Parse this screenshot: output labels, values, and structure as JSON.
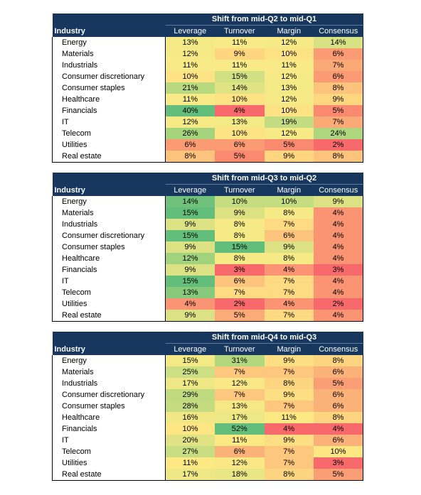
{
  "tables": [
    {
      "title": "Shift from mid-Q2 to mid-Q1",
      "columns": [
        "Industry",
        "Leverage",
        "Turnover",
        "Margin",
        "Consensus"
      ],
      "rows": [
        {
          "industry": "Energy",
          "values": [
            "13%",
            "11%",
            "12%",
            "14%"
          ],
          "colors": [
            "#f3e985",
            "#f7ea87",
            "#f6ea87",
            "#d9e283"
          ]
        },
        {
          "industry": "Materials",
          "values": [
            "12%",
            "9%",
            "10%",
            "6%"
          ],
          "colors": [
            "#f6ea87",
            "#fed680",
            "#fde383",
            "#fa9b73"
          ]
        },
        {
          "industry": "Industrials",
          "values": [
            "11%",
            "11%",
            "11%",
            "7%"
          ],
          "colors": [
            "#f8ea87",
            "#f7ea87",
            "#f8ea87",
            "#fba977"
          ]
        },
        {
          "industry": "Consumer discretionary",
          "values": [
            "10%",
            "15%",
            "12%",
            "6%"
          ],
          "colors": [
            "#fde383",
            "#d1e083",
            "#f6ea87",
            "#fa9b73"
          ]
        },
        {
          "industry": "Consumer staples",
          "values": [
            "21%",
            "14%",
            "13%",
            "8%"
          ],
          "colors": [
            "#b9d97f",
            "#dfe384",
            "#f3e985",
            "#fcc37c"
          ]
        },
        {
          "industry": "Healthcare",
          "values": [
            "11%",
            "10%",
            "12%",
            "9%"
          ],
          "colors": [
            "#f8ea87",
            "#fde383",
            "#f6ea87",
            "#fed680"
          ]
        },
        {
          "industry": "Financials",
          "values": [
            "40%",
            "4%",
            "10%",
            "5%"
          ],
          "colors": [
            "#63be7b",
            "#f8696b",
            "#fde383",
            "#f98a70"
          ]
        },
        {
          "industry": "IT",
          "values": [
            "12%",
            "13%",
            "19%",
            "7%"
          ],
          "colors": [
            "#f6ea87",
            "#f3e985",
            "#c3dc81",
            "#fba977"
          ]
        },
        {
          "industry": "Telecom",
          "values": [
            "26%",
            "10%",
            "12%",
            "24%"
          ],
          "colors": [
            "#a6d47c",
            "#fde383",
            "#f6ea87",
            "#aed67e"
          ]
        },
        {
          "industry": "Utilities",
          "values": [
            "6%",
            "6%",
            "5%",
            "2%"
          ],
          "colors": [
            "#fa9b73",
            "#fa9b73",
            "#f98a70",
            "#f8696b"
          ]
        },
        {
          "industry": "Real estate",
          "values": [
            "8%",
            "5%",
            "9%",
            "8%"
          ],
          "colors": [
            "#fcc37c",
            "#f98a70",
            "#fed680",
            "#fcc37c"
          ]
        }
      ]
    },
    {
      "title": "Shift from mid-Q3 to mid-Q2",
      "columns": [
        "Industry",
        "Leverage",
        "Turnover",
        "Margin",
        "Consensus"
      ],
      "rows": [
        {
          "industry": "Energy",
          "values": [
            "14%",
            "10%",
            "10%",
            "9%"
          ],
          "colors": [
            "#6fc17c",
            "#c5dd81",
            "#c5dd81",
            "#dce283"
          ]
        },
        {
          "industry": "Materials",
          "values": [
            "15%",
            "9%",
            "8%",
            "4%"
          ],
          "colors": [
            "#63be7b",
            "#dce283",
            "#f5ea86",
            "#fa9473"
          ]
        },
        {
          "industry": "Industrials",
          "values": [
            "9%",
            "8%",
            "7%",
            "4%"
          ],
          "colors": [
            "#dce283",
            "#f5ea86",
            "#fedb82",
            "#fa9473"
          ]
        },
        {
          "industry": "Consumer discretionary",
          "values": [
            "15%",
            "8%",
            "6%",
            "4%"
          ],
          "colors": [
            "#63be7b",
            "#f5ea86",
            "#fcc47c",
            "#fa9473"
          ]
        },
        {
          "industry": "Consumer staples",
          "values": [
            "9%",
            "15%",
            "9%",
            "4%"
          ],
          "colors": [
            "#dce283",
            "#63be7b",
            "#dce283",
            "#fa9473"
          ]
        },
        {
          "industry": "Healthcare",
          "values": [
            "12%",
            "8%",
            "8%",
            "4%"
          ],
          "colors": [
            "#a1d27c",
            "#f5ea86",
            "#f5ea86",
            "#fa9473"
          ]
        },
        {
          "industry": "Financials",
          "values": [
            "9%",
            "3%",
            "4%",
            "3%"
          ],
          "colors": [
            "#dce283",
            "#f8696b",
            "#fa9473",
            "#f8696b"
          ]
        },
        {
          "industry": "IT",
          "values": [
            "15%",
            "6%",
            "7%",
            "4%"
          ],
          "colors": [
            "#63be7b",
            "#fcc47c",
            "#fedb82",
            "#fa9473"
          ]
        },
        {
          "industry": "Telecom",
          "values": [
            "13%",
            "7%",
            "7%",
            "4%"
          ],
          "colors": [
            "#88ca7c",
            "#fedb82",
            "#fedb82",
            "#fa9473"
          ]
        },
        {
          "industry": "Utilities",
          "values": [
            "4%",
            "2%",
            "4%",
            "2%"
          ],
          "colors": [
            "#fa9473",
            "#f8696b",
            "#fa9473",
            "#f8696b"
          ]
        },
        {
          "industry": "Real estate",
          "values": [
            "9%",
            "5%",
            "7%",
            "4%"
          ],
          "colors": [
            "#dce283",
            "#fbab78",
            "#fedb82",
            "#fa9473"
          ]
        }
      ]
    },
    {
      "title": "Shift from mid-Q4 to mid-Q3",
      "columns": [
        "Industry",
        "Leverage",
        "Turnover",
        "Margin",
        "Consensus"
      ],
      "rows": [
        {
          "industry": "Energy",
          "values": [
            "15%",
            "31%",
            "9%",
            "8%"
          ],
          "colors": [
            "#f3e985",
            "#b2d77e",
            "#fede83",
            "#fdd581"
          ]
        },
        {
          "industry": "Materials",
          "values": [
            "25%",
            "7%",
            "7%",
            "6%"
          ],
          "colors": [
            "#cddf82",
            "#fdc87d",
            "#fdc87d",
            "#fbb279"
          ]
        },
        {
          "industry": "Industrials",
          "values": [
            "17%",
            "12%",
            "8%",
            "5%"
          ],
          "colors": [
            "#eee785",
            "#f9e885",
            "#fdd581",
            "#fa9f75"
          ]
        },
        {
          "industry": "Consumer discretionary",
          "values": [
            "29%",
            "7%",
            "9%",
            "6%"
          ],
          "colors": [
            "#c0da80",
            "#fdc87d",
            "#fede83",
            "#fbb279"
          ]
        },
        {
          "industry": "Consumer staples",
          "values": [
            "28%",
            "13%",
            "7%",
            "6%"
          ],
          "colors": [
            "#c4db80",
            "#f7e886",
            "#fdc87d",
            "#fbb279"
          ]
        },
        {
          "industry": "Healthcare",
          "values": [
            "16%",
            "17%",
            "11%",
            "8%"
          ],
          "colors": [
            "#f1e885",
            "#eee785",
            "#fde984",
            "#fdd581"
          ]
        },
        {
          "industry": "Financials",
          "values": [
            "10%",
            "52%",
            "4%",
            "4%"
          ],
          "colors": [
            "#fee783",
            "#63be7b",
            "#f8696b",
            "#f8696b"
          ]
        },
        {
          "industry": "IT",
          "values": [
            "20%",
            "11%",
            "9%",
            "6%"
          ],
          "colors": [
            "#e0e384",
            "#fde984",
            "#fede83",
            "#fbb279"
          ]
        },
        {
          "industry": "Telecom",
          "values": [
            "27%",
            "6%",
            "7%",
            "10%"
          ],
          "colors": [
            "#c8dc81",
            "#fbb279",
            "#fdc87d",
            "#fee783"
          ]
        },
        {
          "industry": "Utilities",
          "values": [
            "11%",
            "12%",
            "7%",
            "3%"
          ],
          "colors": [
            "#fde984",
            "#f9e885",
            "#fdc87d",
            "#f8696b"
          ]
        },
        {
          "industry": "Real estate",
          "values": [
            "17%",
            "18%",
            "8%",
            "5%"
          ],
          "colors": [
            "#eee785",
            "#e9e685",
            "#fdd581",
            "#fa9f75"
          ]
        }
      ]
    }
  ]
}
